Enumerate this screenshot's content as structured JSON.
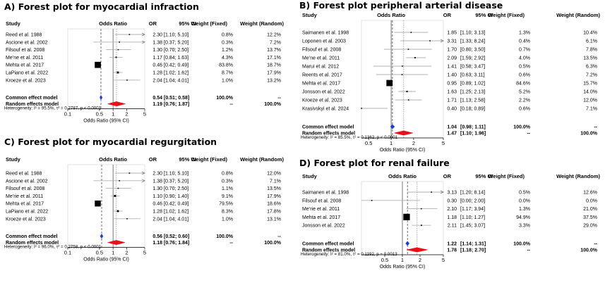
{
  "panels": [
    {
      "title": "A) Forest plot for myocardial infraction",
      "headers": {
        "study": "Study",
        "odds_ratio": "Odds Ratio",
        "or": "OR",
        "ci": "95% CI",
        "wfixed": "Weight (Fixed)",
        "wrandom": "Weight (Random)"
      },
      "studies": [
        {
          "name": "Reed et al. 1988",
          "or": "2.30",
          "ci": "[1.10; 5.10]",
          "wf": "0.8%",
          "wr": "12.2%"
        },
        {
          "name": "Ascione et al. 2002",
          "or": "1.38",
          "ci": "[0.37; 5.20]",
          "wf": "0.3%",
          "wr": "7.2%"
        },
        {
          "name": "Filsouf et al. 2008",
          "or": "1.30",
          "ci": "[0.70; 2.50]",
          "wf": "1.2%",
          "wr": "13.7%"
        },
        {
          "name": "Me’ne et al. 2011",
          "or": "1.17",
          "ci": "[0.84; 1.63]",
          "wf": "4.3%",
          "wr": "17.1%"
        },
        {
          "name": "Mehta et al. 2017",
          "or": "0.46",
          "ci": "[0.42; 0.49]",
          "wf": "83.8%",
          "wr": "18.7%"
        },
        {
          "name": "LaPiano et al. 2022",
          "or": "1.28",
          "ci": "[1.02; 1.62]",
          "wf": "8.7%",
          "wr": "17.9%"
        },
        {
          "name": "Kroeze et al. 2023",
          "or": "2.04",
          "ci": "[1.04; 4.01]",
          "wf": "1.0%",
          "wr": "13.2%"
        }
      ],
      "common": {
        "label": "Common effect model",
        "or": "0.54",
        "ci": "[0.51; 0.58]",
        "wf": "100.0%",
        "wr": "--"
      },
      "random": {
        "label": "Random effects model",
        "or": "1.19",
        "ci": "[0.76; 1.87]",
        "wf": "--",
        "wr": "100.0%"
      },
      "heterogeneity": "Heterogeneity: I² = 95.5%, τ² = 0.2787, p < 0.0001",
      "ticks": [
        "0.1",
        "0.5",
        "1",
        "2",
        "5"
      ],
      "xlabel": "Odds Ratio (95% CI)"
    },
    {
      "title": "B) Forest plot peripheral arterial disease",
      "headers": {
        "study": "Study",
        "odds_ratio": "Odds Ratio",
        "or": "OR",
        "ci": "95% CI",
        "wfixed": "Weight (Fixed)",
        "wrandom": "Weight (Random)"
      },
      "studies": [
        {
          "name": "Saimanen et al. 1998",
          "or": "1.85",
          "ci": "[1.10; 3.13]",
          "wf": "1.3%",
          "wr": "10.4%"
        },
        {
          "name": "Loponen et al. 2003",
          "or": "3.31",
          "ci": "[1.33; 8.24]",
          "wf": "0.4%",
          "wr": "6.1%"
        },
        {
          "name": "Filsouf et al. 2008",
          "or": "1.70",
          "ci": "[0.80; 3.50]",
          "wf": "0.7%",
          "wr": "7.8%"
        },
        {
          "name": "Me’ne et al. 2011",
          "or": "2.09",
          "ci": "[1.59; 2.92]",
          "wf": "4.0%",
          "wr": "13.5%"
        },
        {
          "name": "Marui et al. 2012",
          "or": "1.41",
          "ci": "[0.58; 3.47]",
          "wf": "0.5%",
          "wr": "6.3%"
        },
        {
          "name": "Reents et al. 2017",
          "or": "1.40",
          "ci": "[0.63; 3.11]",
          "wf": "0.6%",
          "wr": "7.2%"
        },
        {
          "name": "Mehta et al. 2017",
          "or": "0.95",
          "ci": "[0.89; 1.02]",
          "wf": "84.6%",
          "wr": "15.7%"
        },
        {
          "name": "Jonsson et al. 2022",
          "or": "1.63",
          "ci": "[1.25; 2.13]",
          "wf": "5.2%",
          "wr": "14.0%"
        },
        {
          "name": "Kroeze et al. 2023",
          "or": "1.71",
          "ci": "[1.13; 2.58]",
          "wf": "2.2%",
          "wr": "12.0%"
        },
        {
          "name": "Krasivskyi et al. 2024",
          "or": "0.40",
          "ci": "[0.18; 0.89]",
          "wf": "0.6%",
          "wr": "7.1%"
        }
      ],
      "common": {
        "label": "Common effect model",
        "or": "1.04",
        "ci": "[0.98; 1.11]",
        "wf": "100.0%",
        "wr": "--"
      },
      "random": {
        "label": "Random effects model",
        "or": "1.47",
        "ci": "[1.10; 1.96]",
        "wf": "--",
        "wr": "100.0%"
      },
      "heterogeneity": "Heterogeneity: I² = 85.5%, τ² = 0.1362, p < 0.0001",
      "ticks": [
        "0.5",
        "1",
        "2",
        "5"
      ],
      "xlabel": "Odds Ratio (95% CI)"
    },
    {
      "title": "C) Forest plot for myocardial regurgitation",
      "headers": {
        "study": "Study",
        "odds_ratio": "Odds Ratio",
        "or": "OR",
        "ci": "95% CI",
        "wfixed": "Weight (Fixed)",
        "wrandom": "Weight (Random)"
      },
      "studies": [
        {
          "name": "Reed et al. 1988",
          "or": "2.30",
          "ci": "[1.10; 5.10]",
          "wf": "0.8%",
          "wr": "12.0%"
        },
        {
          "name": "Ascione et al. 2002",
          "or": "1.38",
          "ci": "[0.37; 5.20]",
          "wf": "0.3%",
          "wr": "7.1%"
        },
        {
          "name": "Filsouf et al. 2008",
          "or": "1.30",
          "ci": "[0.70; 2.50]",
          "wf": "1.1%",
          "wr": "13.5%"
        },
        {
          "name": "Me’rie et al. 2011",
          "or": "1.10",
          "ci": "[0.90; 1.40]",
          "wf": "9.1%",
          "wr": "17.9%"
        },
        {
          "name": "Mehta et al. 2017",
          "or": "0.46",
          "ci": "[0.42; 0.49]",
          "wf": "79.5%",
          "wr": "18.6%"
        },
        {
          "name": "LaPiano et al. 2022",
          "or": "1.28",
          "ci": "[1.02; 1.62]",
          "wf": "8.3%",
          "wr": "17.8%"
        },
        {
          "name": "Kroeze et al. 2023",
          "or": "2.04",
          "ci": "[1.04; 4.01]",
          "wf": "1.0%",
          "wr": "13.1%"
        }
      ],
      "common": {
        "label": "Common effect model",
        "or": "0.56",
        "ci": "[0.52; 0.60]",
        "wf": "100.0%",
        "wr": "--"
      },
      "random": {
        "label": "Random effects model",
        "or": "1.18",
        "ci": "[0.76; 1.84]",
        "wf": "--",
        "wr": "100.0%"
      },
      "heterogeneity": "Heterogeneity: I² = 96.0%, τ² = 0.2758, p < 0.0001",
      "ticks": [
        "0.1",
        "0.5",
        "1",
        "2",
        "5"
      ],
      "xlabel": "Odds Ratio (95% CI)"
    },
    {
      "title": "D) Forest plot for renal failure",
      "headers": {
        "study": "Study",
        "odds_ratio": "Odds Ratio",
        "or": "OR",
        "ci": "95% CI",
        "wfixed": "Weight (Fixed)",
        "wrandom": "Weight (Random)"
      },
      "studies": [
        {
          "name": "Saimanen et al. 1998",
          "or": "3.13",
          "ci": "[1.20; 8.14]",
          "wf": "0.5%",
          "wr": "12.6%"
        },
        {
          "name": "Filsouf et al. 2008",
          "or": "0.30",
          "ci": "[0.00; 2.00]",
          "wf": "0.0%",
          "wr": "0.0%"
        },
        {
          "name": "Me’rie et al. 2011",
          "or": "2.10",
          "ci": "[1.17; 3.94]",
          "wf": "1.3%",
          "wr": "21.0%"
        },
        {
          "name": "Mehta et al. 2017",
          "or": "1.18",
          "ci": "[1.10; 1.27]",
          "wf": "94.9%",
          "wr": "37.5%"
        },
        {
          "name": "Jonsson et al. 2022",
          "or": "2.11",
          "ci": "[1.45; 3.07]",
          "wf": "3.3%",
          "wr": "29.0%"
        }
      ],
      "common": {
        "label": "Common effect model",
        "or": "1.22",
        "ci": "[1.14; 1.31]",
        "wf": "100.0%",
        "wr": "--"
      },
      "random": {
        "label": "Random effects model",
        "or": "1.78",
        "ci": "[1.18; 2.70]",
        "wf": "--",
        "wr": "100.0%"
      },
      "heterogeneity": "Heterogeneity: I² = 81.0%, τ² = 0.1192, p = 0.0013",
      "ticks": [
        "0.5",
        "1",
        "2",
        "5"
      ],
      "xlabel": "Odds Ratio (95% CI)"
    }
  ],
  "chart_data": [
    {
      "type": "forest",
      "title": "A) Forest plot for myocardial infraction",
      "xlabel": "Odds Ratio (95% CI)",
      "xscale": "log",
      "xticks": [
        0.1,
        0.5,
        1,
        2,
        5
      ],
      "xlim": [
        0.1,
        5
      ],
      "studies": [
        "Reed et al. 1988",
        "Ascione et al. 2002",
        "Filsouf et al. 2008",
        "Me’ne et al. 2011",
        "Mehta et al. 2017",
        "LaPiano et al. 2022",
        "Kroeze et al. 2023"
      ],
      "or": [
        2.3,
        1.38,
        1.3,
        1.17,
        0.46,
        1.28,
        2.04
      ],
      "lower": [
        1.1,
        0.37,
        0.7,
        0.84,
        0.42,
        1.02,
        1.04
      ],
      "upper": [
        5.1,
        5.2,
        2.5,
        1.63,
        0.49,
        1.62,
        4.01
      ],
      "weight_fixed": [
        0.8,
        0.3,
        1.2,
        4.3,
        83.8,
        8.7,
        1.0
      ],
      "weight_random": [
        12.2,
        7.2,
        13.7,
        17.1,
        18.7,
        17.9,
        13.2
      ],
      "common_effect": {
        "or": 0.54,
        "lower": 0.51,
        "upper": 0.58
      },
      "random_effects": {
        "or": 1.19,
        "lower": 0.76,
        "upper": 1.87
      },
      "colors": {
        "common": "#1a3fd6",
        "random": "#e8101a",
        "study_ci": "#b0b0b0"
      }
    },
    {
      "type": "forest",
      "title": "B) Forest plot peripheral arterial disease",
      "xlabel": "Odds Ratio (95% CI)",
      "xscale": "log",
      "xticks": [
        0.5,
        1,
        2,
        5
      ],
      "xlim": [
        0.4,
        5
      ],
      "studies": [
        "Saimanen et al. 1998",
        "Loponen et al. 2003",
        "Filsouf et al. 2008",
        "Me’ne et al. 2011",
        "Marui et al. 2012",
        "Reents et al. 2017",
        "Mehta et al. 2017",
        "Jonsson et al. 2022",
        "Kroeze et al. 2023",
        "Krasivskyi et al. 2024"
      ],
      "or": [
        1.85,
        3.31,
        1.7,
        2.09,
        1.41,
        1.4,
        0.95,
        1.63,
        1.71,
        0.4
      ],
      "lower": [
        1.1,
        1.33,
        0.8,
        1.59,
        0.58,
        0.63,
        0.89,
        1.25,
        1.13,
        0.18
      ],
      "upper": [
        3.13,
        8.24,
        3.5,
        2.92,
        3.47,
        3.11,
        1.02,
        2.13,
        2.58,
        0.89
      ],
      "weight_fixed": [
        1.3,
        0.4,
        0.7,
        4.0,
        0.5,
        0.6,
        84.6,
        5.2,
        2.2,
        0.6
      ],
      "weight_random": [
        10.4,
        6.1,
        7.8,
        13.5,
        6.3,
        7.2,
        15.7,
        14.0,
        12.0,
        7.1
      ],
      "common_effect": {
        "or": 1.04,
        "lower": 0.98,
        "upper": 1.11
      },
      "random_effects": {
        "or": 1.47,
        "lower": 1.1,
        "upper": 1.96
      },
      "colors": {
        "common": "#1a3fd6",
        "random": "#e8101a",
        "study_ci": "#b0b0b0"
      }
    },
    {
      "type": "forest",
      "title": "C) Forest plot for myocardial regurgitation",
      "xlabel": "Odds Ratio (95% CI)",
      "xscale": "log",
      "xticks": [
        0.1,
        0.5,
        1,
        2,
        5
      ],
      "xlim": [
        0.1,
        5
      ],
      "studies": [
        "Reed et al. 1988",
        "Ascione et al. 2002",
        "Filsouf et al. 2008",
        "Me’rie et al. 2011",
        "Mehta et al. 2017",
        "LaPiano et al. 2022",
        "Kroeze et al. 2023"
      ],
      "or": [
        2.3,
        1.38,
        1.3,
        1.1,
        0.46,
        1.28,
        2.04
      ],
      "lower": [
        1.1,
        0.37,
        0.7,
        0.9,
        0.42,
        1.02,
        1.04
      ],
      "upper": [
        5.1,
        5.2,
        2.5,
        1.4,
        0.49,
        1.62,
        4.01
      ],
      "weight_fixed": [
        0.8,
        0.3,
        1.1,
        9.1,
        79.5,
        8.3,
        1.0
      ],
      "weight_random": [
        12.0,
        7.1,
        13.5,
        17.9,
        18.6,
        17.8,
        13.1
      ],
      "common_effect": {
        "or": 0.56,
        "lower": 0.52,
        "upper": 0.6
      },
      "random_effects": {
        "or": 1.18,
        "lower": 0.76,
        "upper": 1.84
      },
      "colors": {
        "common": "#1a3fd6",
        "random": "#e8101a",
        "study_ci": "#b0b0b0"
      }
    },
    {
      "type": "forest",
      "title": "D) Forest plot for renal failure",
      "xlabel": "Odds Ratio (95% CI)",
      "xscale": "log",
      "xticks": [
        0.5,
        1,
        2,
        5
      ],
      "xlim": [
        0.2,
        5
      ],
      "studies": [
        "Saimanen et al. 1998",
        "Filsouf et al. 2008",
        "Me’rie et al. 2011",
        "Mehta et al. 2017",
        "Jonsson et al. 2022"
      ],
      "or": [
        3.13,
        0.3,
        2.1,
        1.18,
        2.11
      ],
      "lower": [
        1.2,
        0.0,
        1.17,
        1.1,
        1.45
      ],
      "upper": [
        8.14,
        2.0,
        3.94,
        1.27,
        3.07
      ],
      "weight_fixed": [
        0.5,
        0.0,
        1.3,
        94.9,
        3.3
      ],
      "weight_random": [
        12.6,
        0.0,
        21.0,
        37.5,
        29.0
      ],
      "common_effect": {
        "or": 1.22,
        "lower": 1.14,
        "upper": 1.31
      },
      "random_effects": {
        "or": 1.78,
        "lower": 1.18,
        "upper": 2.7
      },
      "colors": {
        "common": "#1a3fd6",
        "random": "#e8101a",
        "study_ci": "#b0b0b0"
      }
    }
  ]
}
